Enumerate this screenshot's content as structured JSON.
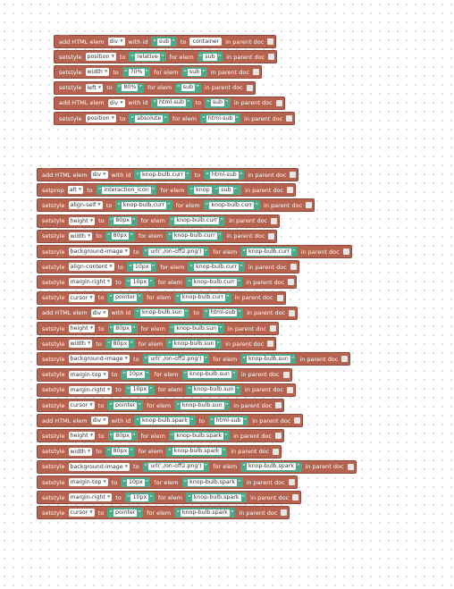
{
  "words": {
    "add": "add HTML elem",
    "with_id": "with id",
    "to": "to",
    "in_parent": "in parent doc",
    "setstyle": "setstyle",
    "setprop": "setprop",
    "for_elem": "for elem"
  },
  "group1": [
    {
      "kind": "add",
      "tag": "div",
      "id": "sub",
      "parent": "container"
    },
    {
      "kind": "setstyle",
      "prop": "position",
      "value": "relative",
      "elem": "sub"
    },
    {
      "kind": "setstyle",
      "prop": "width",
      "value": "70%",
      "elem": "sub"
    },
    {
      "kind": "setstyle",
      "prop": "left",
      "value": "80%",
      "elem": "sub"
    },
    {
      "kind": "add",
      "tag": "div",
      "id": "html-sub",
      "parent": "sub"
    },
    {
      "kind": "setstyle",
      "prop": "position",
      "value": "absolute",
      "elem": "html-sub"
    }
  ],
  "group2": [
    {
      "kind": "add",
      "tag": "div",
      "id": "knop-bulb.curr",
      "parent": "html-sub"
    },
    {
      "kind": "setprop",
      "prop": "alt",
      "value": "interaction_icon",
      "elem": "knop",
      "elem2": "sub"
    },
    {
      "kind": "setstyle",
      "prop": "align-self",
      "value": "knop-bulb.curr",
      "elem": "knop-bulb.curr"
    },
    {
      "kind": "setstyle",
      "prop": "height",
      "value": "80px",
      "elem": "knop-bulb.curr"
    },
    {
      "kind": "setstyle",
      "prop": "width",
      "value": "80px",
      "elem": "knop-bulb.curr"
    },
    {
      "kind": "setstyle",
      "prop": "background-image",
      "value": "url('./on-off2.png')",
      "elem": "knop-bulb.curr"
    },
    {
      "kind": "setstyle",
      "prop": "align-content",
      "value": "10px",
      "elem": "knop-bulb.curr"
    },
    {
      "kind": "setstyle",
      "prop": "margin-right",
      "value": "10px",
      "elem": "knop-bulb.curr"
    },
    {
      "kind": "setstyle",
      "prop": "cursor",
      "value": "pointer",
      "elem": "knop-bulb.curr"
    },
    {
      "kind": "add",
      "tag": "div",
      "id": "knop-bulb.sun",
      "parent": "html-sub"
    },
    {
      "kind": "setstyle",
      "prop": "height",
      "value": "80px",
      "elem": "knop-bulb.sun"
    },
    {
      "kind": "setstyle",
      "prop": "width",
      "value": "80px",
      "elem": "knop-bulb.sun"
    },
    {
      "kind": "setstyle",
      "prop": "background-image",
      "value": "url('./on-off2.png')",
      "elem": "knop-bulb.sun"
    },
    {
      "kind": "setstyle",
      "prop": "margin-top",
      "value": "10px",
      "elem": "knop-bulb.sun"
    },
    {
      "kind": "setstyle",
      "prop": "margin-right",
      "value": "10px",
      "elem": "knop-bulb.sun"
    },
    {
      "kind": "setstyle",
      "prop": "cursor",
      "value": "pointer",
      "elem": "knop-bulb.sun"
    },
    {
      "kind": "add",
      "tag": "div",
      "id": "knop-bulb.spark",
      "parent": "html-sub"
    },
    {
      "kind": "setstyle",
      "prop": "height",
      "value": "80px",
      "elem": "knop-bulb.spark"
    },
    {
      "kind": "setstyle",
      "prop": "width",
      "value": "80px",
      "elem": "knop-bulb.spark"
    },
    {
      "kind": "setstyle",
      "prop": "background-image",
      "value": "url('./on-off2.png')",
      "elem": "knop-bulb.spark"
    },
    {
      "kind": "setstyle",
      "prop": "margin-top",
      "value": "10px",
      "elem": "knop-bulb.spark"
    },
    {
      "kind": "setstyle",
      "prop": "margin-right",
      "value": "10px",
      "elem": "knop-bulb.spark"
    },
    {
      "kind": "setstyle",
      "prop": "cursor",
      "value": "pointer",
      "elem": "knop-bulb.spark"
    }
  ]
}
